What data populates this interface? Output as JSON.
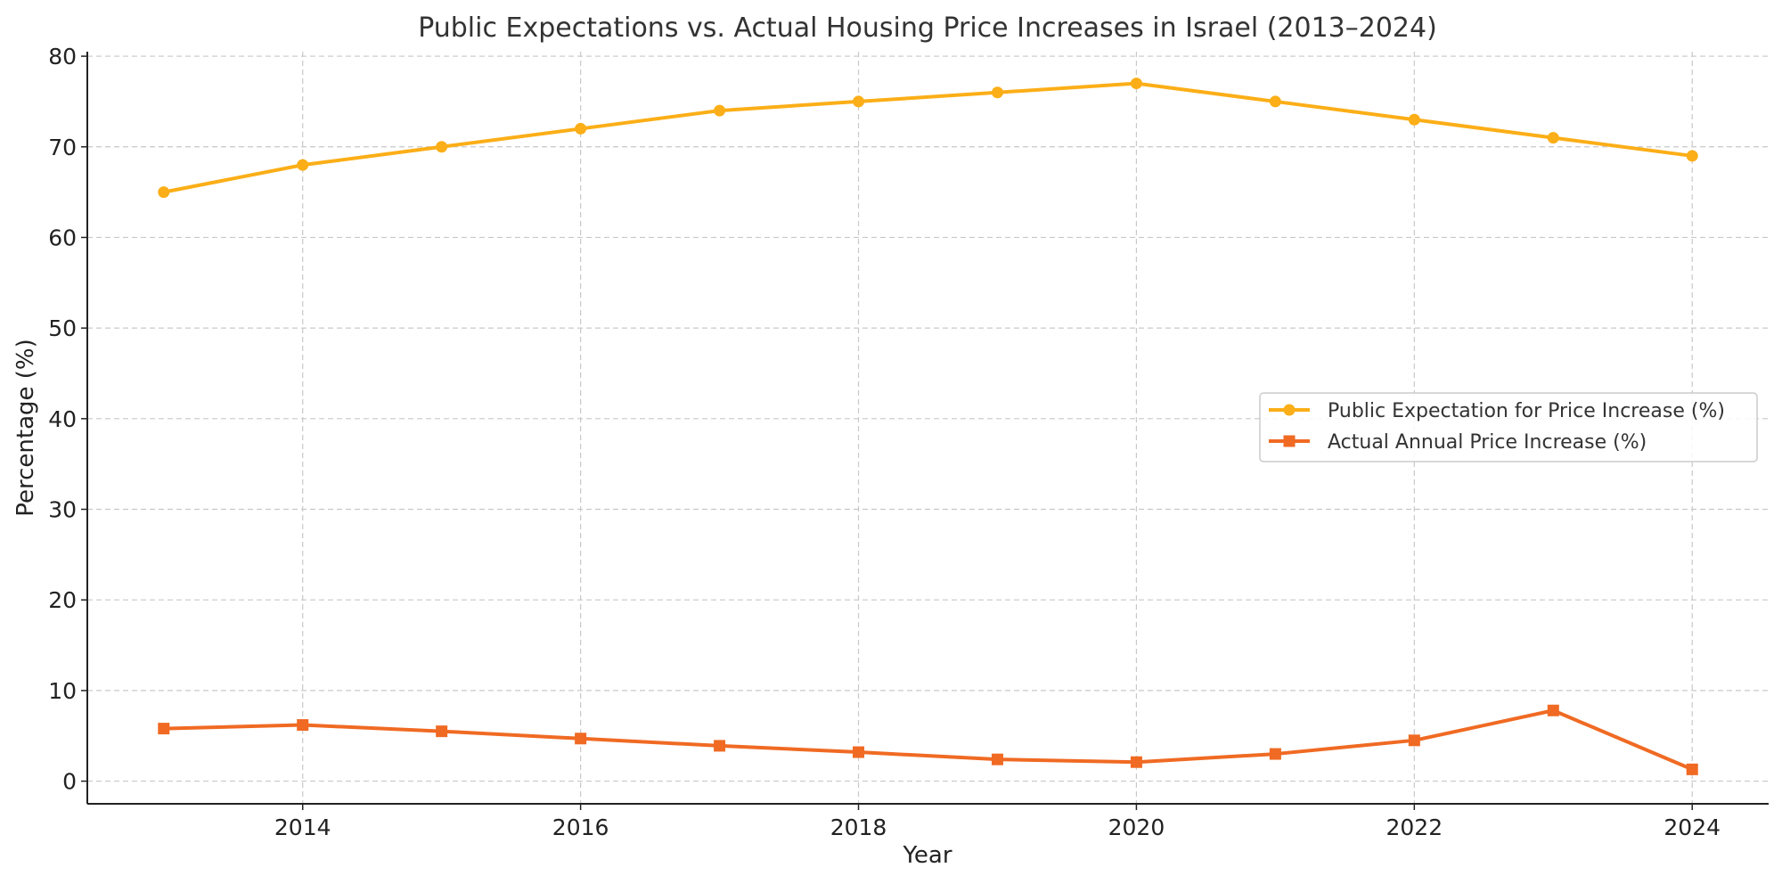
{
  "chart_data": {
    "type": "line",
    "title": "Public Expectations vs. Actual Housing Price Increases in Israel (2013–2024)",
    "xlabel": "Year",
    "ylabel": "Percentage (%)",
    "x": [
      2013,
      2014,
      2015,
      2016,
      2017,
      2018,
      2019,
      2020,
      2021,
      2022,
      2023,
      2024
    ],
    "xlim": [
      2012.45,
      2024.55
    ],
    "ylim": [
      -2.5,
      80.5
    ],
    "xticks": [
      2014,
      2016,
      2018,
      2020,
      2022,
      2024
    ],
    "yticks": [
      0,
      10,
      20,
      30,
      40,
      50,
      60,
      70,
      80
    ],
    "grid": true,
    "legend_position": "center-right",
    "series": [
      {
        "name": "Public Expectation for Price Increase (%)",
        "color": "#FBAE17",
        "marker": "circle",
        "values": [
          65,
          68,
          70,
          72,
          74,
          75,
          76,
          77,
          75,
          73,
          71,
          69
        ]
      },
      {
        "name": "Actual Annual Price Increase (%)",
        "color": "#F06A23",
        "marker": "square",
        "values": [
          5.8,
          6.2,
          5.5,
          4.7,
          3.9,
          3.2,
          2.4,
          2.1,
          3.0,
          4.5,
          7.8,
          1.3
        ]
      }
    ]
  }
}
